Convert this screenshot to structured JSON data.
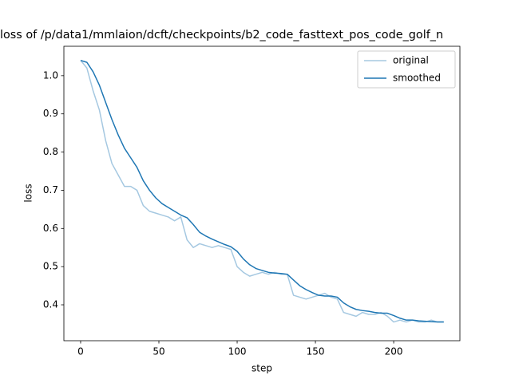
{
  "chart_data": {
    "type": "line",
    "title": "loss of /p/data1/mmlaion/dcft/checkpoints/b2_code_fasttext_pos_code_golf_n",
    "xlabel": "step",
    "ylabel": "loss",
    "x": [
      0,
      4,
      8,
      12,
      16,
      20,
      24,
      28,
      32,
      36,
      40,
      44,
      48,
      52,
      56,
      60,
      64,
      68,
      72,
      76,
      80,
      84,
      88,
      92,
      96,
      100,
      104,
      108,
      112,
      116,
      120,
      124,
      128,
      132,
      136,
      140,
      144,
      148,
      152,
      156,
      160,
      164,
      168,
      172,
      176,
      180,
      184,
      188,
      192,
      196,
      200,
      204,
      208,
      212,
      216,
      220,
      224,
      228,
      232
    ],
    "series": [
      {
        "name": "original",
        "color": "#a5c8e1",
        "values": [
          1.04,
          1.02,
          0.96,
          0.91,
          0.83,
          0.77,
          0.74,
          0.71,
          0.71,
          0.7,
          0.66,
          0.645,
          0.64,
          0.635,
          0.63,
          0.62,
          0.63,
          0.57,
          0.55,
          0.56,
          0.555,
          0.55,
          0.555,
          0.55,
          0.545,
          0.5,
          0.485,
          0.475,
          0.48,
          0.485,
          0.48,
          0.485,
          0.48,
          0.48,
          0.425,
          0.42,
          0.415,
          0.42,
          0.425,
          0.43,
          0.42,
          0.415,
          0.38,
          0.375,
          0.37,
          0.38,
          0.375,
          0.375,
          0.38,
          0.37,
          0.355,
          0.36,
          0.355,
          0.36,
          0.355,
          0.355,
          0.36,
          0.355,
          0.355
        ]
      },
      {
        "name": "smoothed",
        "color": "#1f77b4",
        "values": [
          1.04,
          1.035,
          1.01,
          0.975,
          0.93,
          0.885,
          0.845,
          0.81,
          0.785,
          0.76,
          0.725,
          0.7,
          0.68,
          0.665,
          0.655,
          0.645,
          0.635,
          0.628,
          0.61,
          0.59,
          0.58,
          0.572,
          0.565,
          0.558,
          0.552,
          0.54,
          0.52,
          0.505,
          0.495,
          0.49,
          0.485,
          0.483,
          0.482,
          0.48,
          0.465,
          0.45,
          0.44,
          0.432,
          0.425,
          0.423,
          0.423,
          0.42,
          0.405,
          0.395,
          0.388,
          0.385,
          0.383,
          0.38,
          0.378,
          0.378,
          0.372,
          0.365,
          0.36,
          0.36,
          0.358,
          0.357,
          0.356,
          0.355,
          0.355
        ]
      }
    ],
    "xlim": [
      -10.7,
      242.3
    ],
    "ylim": [
      0.306,
      1.077
    ],
    "xticks": [
      0,
      50,
      100,
      150,
      200
    ],
    "yticks": [
      0.4,
      0.5,
      0.6,
      0.7,
      0.8,
      0.9,
      {
        "value": 1,
        "label": "1.0"
      }
    ],
    "legend": "upper right"
  }
}
